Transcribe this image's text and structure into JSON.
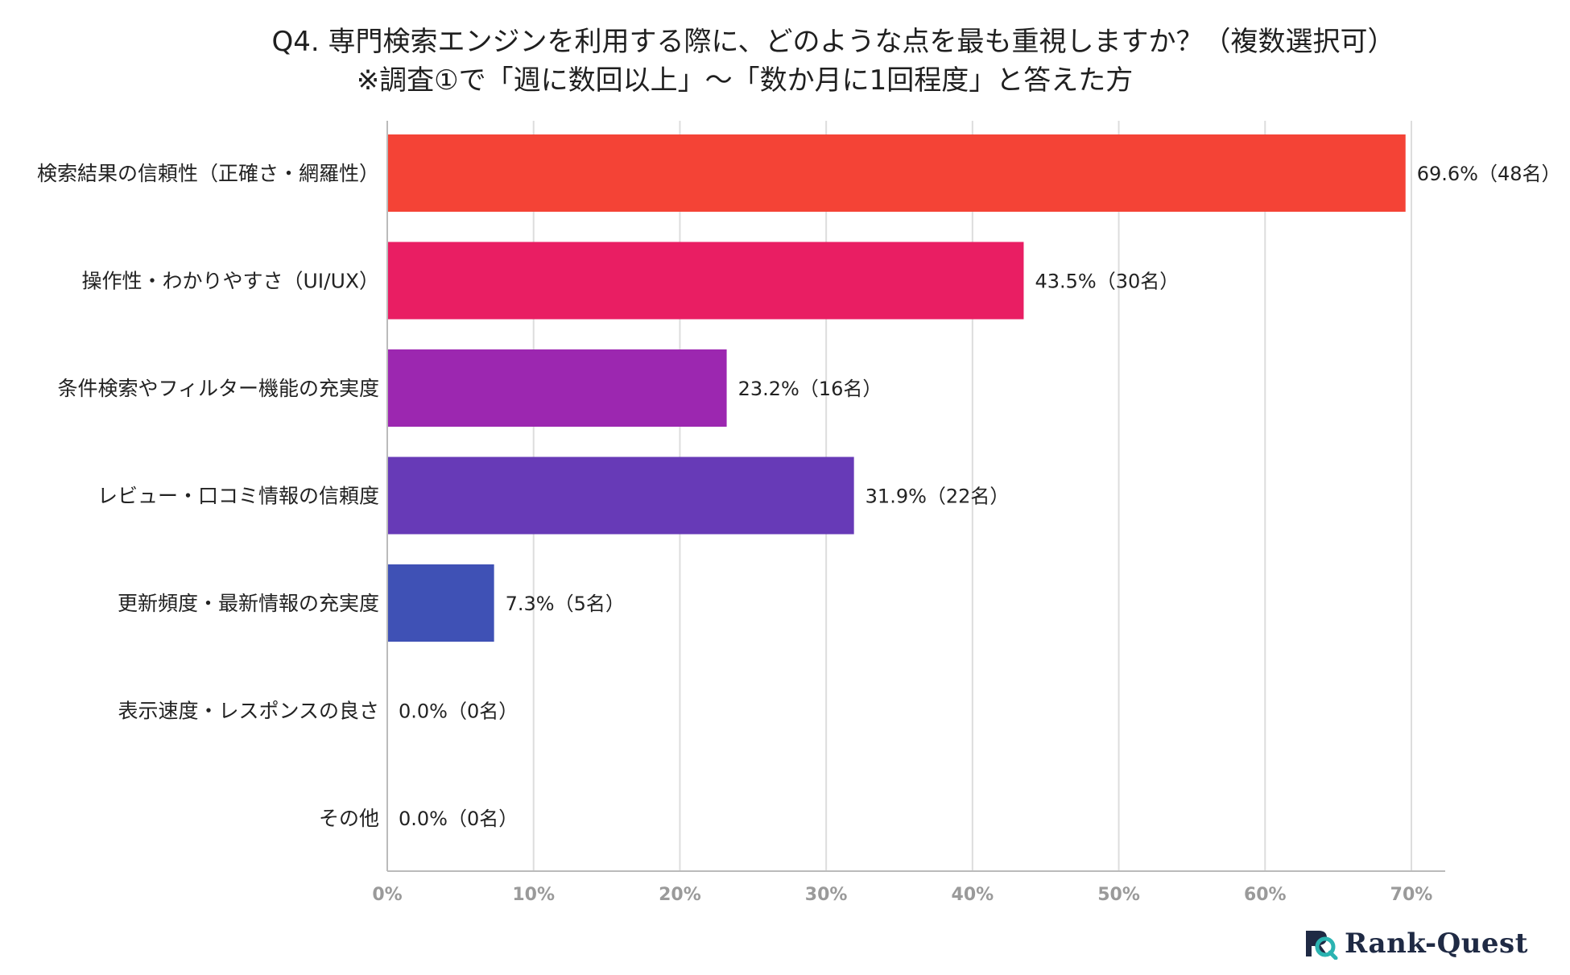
{
  "title": {
    "line1": "Q4. 専門検索エンジンを利用する際に、どのような点を最も重視しますか？（複数選択可）",
    "line2": "※調査①で「週に数回以上」～「数か月に1回程度」と答えた方"
  },
  "logo": {
    "text": "Rank-Quest",
    "icon": "rank-quest-logo-icon"
  },
  "chart_data": {
    "type": "bar",
    "orientation": "horizontal",
    "title": "Q4. 専門検索エンジンを利用する際に、どのような点を最も重視しますか？（複数選択可）",
    "subtitle": "※調査①で「週に数回以上」～「数か月に1回程度」と答えた方",
    "xlabel": "",
    "ylabel": "",
    "xlim": [
      0,
      70
    ],
    "grid": true,
    "ticks": [
      "0%",
      "10%",
      "20%",
      "30%",
      "40%",
      "50%",
      "60%",
      "70%"
    ],
    "tick_values": [
      0,
      10,
      20,
      30,
      40,
      50,
      60,
      70
    ],
    "categories": [
      "検索結果の信頼性（正確さ・網羅性）",
      "操作性・わかりやすさ（UI/UX）",
      "条件検索やフィルター機能の充実度",
      "レビュー・口コミ情報の信頼度",
      "更新頻度・最新情報の充実度",
      "表示速度・レスポンスの良さ",
      "その他"
    ],
    "values": [
      69.6,
      43.5,
      23.2,
      31.9,
      7.3,
      0.0,
      0.0
    ],
    "data_labels": [
      "69.6%（48名）",
      "43.5%（30名）",
      "23.2%（16名）",
      "31.9%（22名）",
      "7.3%（5名）",
      "0.0%（0名）",
      "0.0%（0名）"
    ],
    "colors": [
      "#f44336",
      "#e91e63",
      "#9c27b0",
      "#673ab7",
      "#3f51b5",
      "#2196f3",
      "#03a9f4"
    ]
  }
}
